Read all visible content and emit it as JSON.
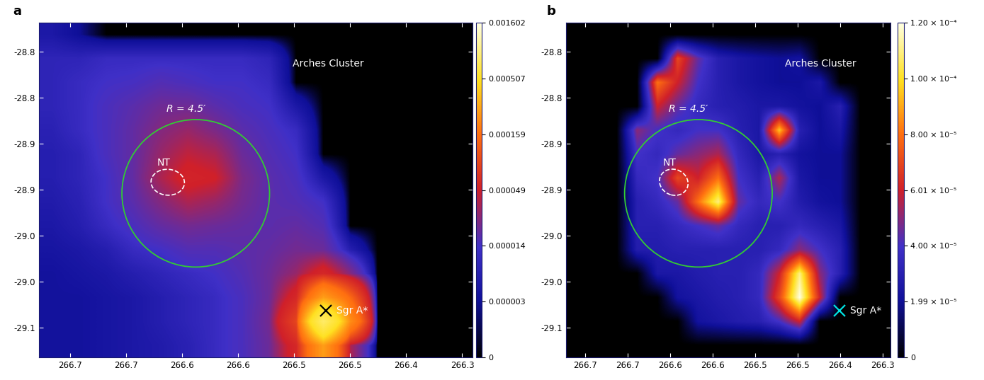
{
  "chart_data": [
    {
      "type": "heatmap",
      "title": "a",
      "xlim": [
        266.728,
        266.341
      ],
      "ylim": [
        -29.132,
        -28.769
      ],
      "xticks": [
        266.7,
        {
          "value": 266.65,
          "label": "266.7"
        },
        266.6,
        {
          "value": 266.55,
          "label": "266.6"
        },
        266.5,
        {
          "value": 266.45,
          "label": "266.5"
        },
        266.4,
        {
          "value": 266.35,
          "label": "266.3"
        }
      ],
      "yticks": [
        -28.8,
        {
          "value": -28.85,
          "label": "-28.8"
        },
        -28.9,
        {
          "value": -28.95,
          "label": "-28.9"
        },
        -29.0,
        {
          "value": -29.05,
          "label": "-29.0"
        },
        -29.1
      ],
      "cells": [
        [
          6e-06,
          3e-06,
          0,
          0,
          0,
          0,
          0,
          0,
          0,
          0,
          0,
          0,
          0,
          0,
          0,
          0
        ],
        [
          1e-05,
          1e-05,
          1.2e-05,
          1.2e-05,
          1.2e-05,
          1.2e-05,
          1.2e-05,
          1.2e-05,
          1e-05,
          0,
          0,
          0,
          0,
          0,
          0,
          0
        ],
        [
          1e-05,
          1.2e-05,
          1.4e-05,
          1.5e-05,
          1.8e-05,
          1.6e-05,
          1.4e-05,
          1.4e-05,
          1.2e-05,
          0,
          0,
          0,
          0,
          0,
          0,
          0
        ],
        [
          1e-05,
          1.2e-05,
          1.6e-05,
          2e-05,
          2.5e-05,
          2.5e-05,
          2e-05,
          1.6e-05,
          1.4e-05,
          6e-06,
          0,
          0,
          0,
          0,
          0,
          0
        ],
        [
          9e-06,
          1.2e-05,
          1.6e-05,
          2.2e-05,
          3e-05,
          3.5e-05,
          2.8e-05,
          2e-05,
          1.6e-05,
          1.2e-05,
          0,
          0,
          0,
          0,
          0,
          0
        ],
        [
          8e-06,
          1e-05,
          1.6e-05,
          2.2e-05,
          3.5e-05,
          4.5e-05,
          4e-05,
          2.4e-05,
          1.8e-05,
          1.4e-05,
          0,
          0,
          0,
          0,
          0,
          0
        ],
        [
          8e-06,
          1e-05,
          1.4e-05,
          2.2e-05,
          4e-05,
          5.5e-05,
          5e-05,
          2.8e-05,
          2e-05,
          1.6e-05,
          6e-06,
          0,
          0,
          0,
          0,
          0
        ],
        [
          7e-06,
          9e-06,
          1.4e-05,
          2e-05,
          3e-05,
          4e-05,
          3.5e-05,
          2.6e-05,
          2e-05,
          1.8e-05,
          1.4e-05,
          0,
          0,
          0,
          0,
          0
        ],
        [
          6e-06,
          8e-06,
          1.2e-05,
          1.6e-05,
          2.2e-05,
          2.6e-05,
          2.4e-05,
          2.2e-05,
          2e-05,
          2.2e-05,
          1.8e-05,
          0,
          0,
          0,
          0,
          0
        ],
        [
          5e-06,
          6e-06,
          8e-06,
          1.2e-05,
          1.4e-05,
          1.8e-05,
          1.8e-05,
          2e-05,
          2.2e-05,
          2.6e-05,
          2.4e-05,
          8e-06,
          0,
          0,
          0,
          0
        ],
        [
          4e-06,
          5e-06,
          6e-06,
          8e-06,
          1e-05,
          1.2e-05,
          1.4e-05,
          1.8e-05,
          2.4e-05,
          3.5e-05,
          6e-05,
          3e-05,
          0,
          0,
          0,
          0
        ],
        [
          4e-06,
          4e-06,
          5e-06,
          6e-06,
          8e-06,
          1e-05,
          1.2e-05,
          1.6e-05,
          2.4e-05,
          6e-05,
          0.0003,
          0.00015,
          0,
          0,
          0,
          0
        ],
        [
          4e-06,
          4e-06,
          5e-06,
          6e-06,
          8e-06,
          1e-05,
          1.2e-05,
          1.6e-05,
          2.6e-05,
          0.0001,
          0.0009,
          0.00025,
          0,
          0,
          0,
          0
        ],
        [
          4e-06,
          4e-06,
          5e-06,
          6e-06,
          7e-06,
          9e-06,
          1.2e-05,
          1.6e-05,
          2.4e-05,
          6e-05,
          0.0003,
          4e-05,
          0,
          0,
          0,
          0
        ]
      ],
      "colorbar": {
        "range": [
          0,
          0.001602
        ],
        "ticks": [
          0,
          {
            "value": 3e-06,
            "label": "0.000003"
          },
          {
            "value": 1.4e-05,
            "label": "0.000014"
          },
          {
            "value": 4.9e-05,
            "label": "0.000049"
          },
          {
            "value": 0.000159,
            "label": "0.000159"
          },
          {
            "value": 0.000507,
            "label": "0.000507"
          },
          {
            "value": 0.001602,
            "label": "0.001602"
          }
        ]
      },
      "markers": [
        {
          "text": "Sgr A*",
          "x": 266.472,
          "y": -29.081,
          "marker": "x",
          "color": "#000000"
        }
      ],
      "labels": [
        {
          "text": "Arches Cluster",
          "x": 266.47,
          "y": -28.813
        }
      ],
      "circle": {
        "label": "R = 4.5′",
        "x": 266.588,
        "y": -28.954,
        "radius": 0.08,
        "color": "#33cc33"
      },
      "region": {
        "label": "NT",
        "x": 266.613,
        "y": -28.942,
        "width": 0.03,
        "height": 0.028
      }
    },
    {
      "type": "heatmap",
      "title": "b",
      "xlim": [
        266.723,
        266.341
      ],
      "ylim": [
        -29.132,
        -28.769
      ],
      "xticks": [
        266.7,
        {
          "value": 266.65,
          "label": "266.7"
        },
        266.6,
        {
          "value": 266.55,
          "label": "266.6"
        },
        266.5,
        {
          "value": 266.45,
          "label": "266.5"
        },
        266.4,
        {
          "value": 266.35,
          "label": "266.3"
        }
      ],
      "yticks": [
        -28.8,
        {
          "value": -28.85,
          "label": "-28.8"
        },
        -28.9,
        {
          "value": -28.95,
          "label": "-28.9"
        },
        -29.0,
        {
          "value": -29.05,
          "label": "-29.0"
        },
        -29.1
      ],
      "cells": [
        [
          0,
          0,
          0,
          0,
          0,
          0,
          0,
          0,
          0,
          0,
          0,
          0,
          0,
          0,
          0,
          0
        ],
        [
          0,
          0,
          0,
          0,
          0,
          7e-05,
          4.5e-05,
          3e-05,
          2.5e-05,
          2.2e-05,
          2e-05,
          2.2e-05,
          0,
          0,
          0,
          0
        ],
        [
          0,
          0,
          0,
          0,
          8e-05,
          6e-05,
          4e-05,
          3e-05,
          2.5e-05,
          2.2e-05,
          2e-05,
          2e-05,
          2.5e-05,
          0,
          0,
          0
        ],
        [
          0,
          0,
          0,
          0,
          6e-05,
          4.5e-05,
          3.5e-05,
          3e-05,
          2.8e-05,
          2.5e-05,
          2.5e-05,
          2.2e-05,
          2e-05,
          3e-05,
          0,
          0
        ],
        [
          0,
          0,
          0,
          5e-05,
          4e-05,
          3.5e-05,
          4e-05,
          4e-05,
          3e-05,
          2.5e-05,
          9.5e-05,
          3e-05,
          2e-05,
          2.5e-05,
          0,
          0
        ],
        [
          0,
          0,
          0,
          4e-05,
          3.5e-05,
          4.5e-05,
          5e-05,
          5.5e-05,
          3.5e-05,
          2.5e-05,
          3e-05,
          2.2e-05,
          2e-05,
          2e-05,
          0,
          0
        ],
        [
          0,
          0,
          0,
          3.5e-05,
          4e-05,
          7e-05,
          6e-05,
          8e-05,
          4e-05,
          3e-05,
          5.5e-05,
          2.5e-05,
          2e-05,
          2e-05,
          0,
          0
        ],
        [
          0,
          0,
          0,
          3e-05,
          3.5e-05,
          4.5e-05,
          8e-05,
          0.00011,
          4.5e-05,
          3.5e-05,
          4e-05,
          2.8e-05,
          2.2e-05,
          2e-05,
          0,
          0
        ],
        [
          0,
          0,
          0,
          3e-05,
          3e-05,
          3.5e-05,
          4e-05,
          4.5e-05,
          3.5e-05,
          3e-05,
          3e-05,
          3.5e-05,
          3e-05,
          2.5e-05,
          0,
          0
        ],
        [
          0,
          0,
          0,
          2.8e-05,
          2.8e-05,
          3e-05,
          3e-05,
          3e-05,
          3e-05,
          3e-05,
          3.5e-05,
          5e-05,
          4e-05,
          3e-05,
          0,
          0
        ],
        [
          0,
          0,
          0,
          0,
          2.5e-05,
          2.5e-05,
          2.8e-05,
          3e-05,
          3e-05,
          3.5e-05,
          6e-05,
          0.00011,
          5e-05,
          3e-05,
          0,
          0
        ],
        [
          0,
          0,
          0,
          0,
          0,
          2.2e-05,
          2.5e-05,
          2.8e-05,
          3e-05,
          3.5e-05,
          7e-05,
          0.00012,
          6e-05,
          0,
          0,
          0
        ],
        [
          0,
          0,
          0,
          0,
          0,
          0,
          2.2e-05,
          2.5e-05,
          2.8e-05,
          3e-05,
          4e-05,
          6e-05,
          0,
          0,
          0,
          0
        ],
        [
          0,
          0,
          0,
          0,
          0,
          0,
          0,
          0,
          0,
          0,
          0,
          0,
          0,
          0,
          0,
          0
        ]
      ],
      "colorbar": {
        "range": [
          0,
          0.00012
        ],
        "ticks": [
          0,
          {
            "value": 1.99e-05,
            "label": "1.99 × 10⁻⁵"
          },
          {
            "value": 4e-05,
            "label": "4.00 × 10⁻⁵"
          },
          {
            "value": 6.01e-05,
            "label": "6.01 × 10⁻⁵"
          },
          {
            "value": 8e-05,
            "label": "8.00 × 10⁻⁵"
          },
          {
            "value": 0.0001,
            "label": "1.00 × 10⁻⁴"
          },
          {
            "value": 0.00012,
            "label": "1.20 × 10⁻⁴"
          }
        ]
      },
      "markers": [
        {
          "text": "Sgr A*",
          "x": 266.401,
          "y": -29.081,
          "marker": "x",
          "color": "#00e5e5"
        }
      ],
      "labels": [
        {
          "text": "Arches Cluster",
          "x": 266.423,
          "y": -28.813
        }
      ],
      "circle": {
        "label": "R = 4.5′",
        "x": 266.567,
        "y": -28.954,
        "radius": 0.08,
        "color": "#33cc33"
      },
      "region": {
        "label": "NT",
        "x": 266.596,
        "y": -28.942,
        "width": 0.034,
        "height": 0.028
      }
    }
  ]
}
